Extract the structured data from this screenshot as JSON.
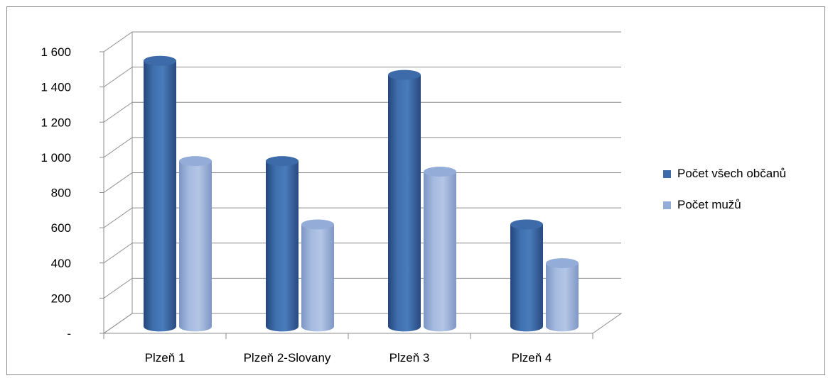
{
  "chart_data": {
    "type": "bar",
    "categories": [
      "Plzeň 1",
      "Plzeň 2-Slovany",
      "Plzeň 3",
      "Plzeň 4"
    ],
    "series": [
      {
        "name": "Počet všech občanů",
        "values": [
          1510,
          940,
          1430,
          580
        ],
        "color": "#3d6aa8"
      },
      {
        "name": "Počet mužů",
        "values": [
          940,
          580,
          880,
          360
        ],
        "color": "#94acd8"
      }
    ],
    "ylim": [
      0,
      1600
    ],
    "yticks": [
      {
        "value": 0,
        "label": "-"
      },
      {
        "value": 200,
        "label": "200"
      },
      {
        "value": 400,
        "label": "400"
      },
      {
        "value": 600,
        "label": "600"
      },
      {
        "value": 800,
        "label": "800"
      },
      {
        "value": 1000,
        "label": "1 000"
      },
      {
        "value": 1200,
        "label": "1 200"
      },
      {
        "value": 1400,
        "label": "1 400"
      },
      {
        "value": 1600,
        "label": "1 600"
      }
    ],
    "grid": true,
    "three_d": true,
    "bar_shape": "cylinder",
    "legend_position": "right"
  }
}
